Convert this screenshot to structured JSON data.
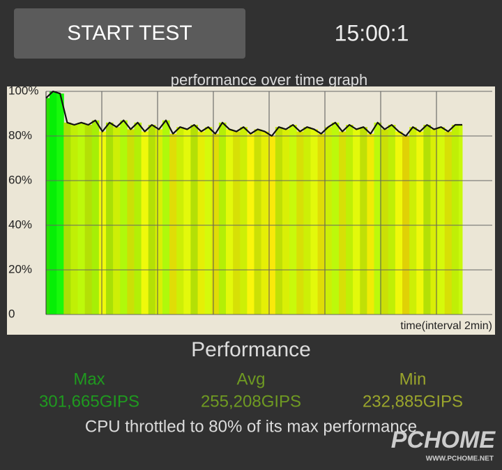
{
  "button": "START TEST",
  "timer": "15:00:1",
  "chart_data": {
    "type": "line",
    "title": "performance over time graph",
    "x_label": "time(interval 2min)",
    "values": [
      97,
      100,
      99,
      86,
      85,
      86,
      85,
      87,
      82,
      86,
      84,
      87,
      83,
      86,
      82,
      85,
      83,
      87,
      81,
      84,
      83,
      85,
      82,
      84,
      81,
      86,
      83,
      82,
      84,
      81,
      83,
      82,
      80,
      84,
      83,
      85,
      82,
      84,
      83,
      81,
      84,
      86,
      82,
      85,
      83,
      84,
      81,
      86,
      83,
      85,
      82,
      80,
      84,
      82,
      85,
      83,
      84,
      82,
      85,
      85
    ],
    "color": "#111111",
    "ylim": [
      0,
      100
    ],
    "yticks": [
      0,
      {
        "value": 20,
        "label": "20%"
      },
      {
        "value": 40,
        "label": "40%"
      },
      {
        "value": 60,
        "label": "60%"
      },
      {
        "value": 80,
        "label": "80%"
      },
      {
        "value": 100,
        "label": "100%"
      }
    ],
    "grid": true
  },
  "stats": {
    "title": "Performance",
    "items": [
      {
        "label": "Max",
        "value": "301,665GIPS",
        "color": "#1f9a1f"
      },
      {
        "label": "Avg",
        "value": "255,208GIPS",
        "color": "#6f9a22"
      },
      {
        "label": "Min",
        "value": "232,885GIPS",
        "color": "#9aa52c"
      }
    ],
    "note": "CPU throttled to 80% of its max performance"
  },
  "watermark": {
    "logo": "PCHOME",
    "url": "WWW.PCHOME.NET"
  }
}
